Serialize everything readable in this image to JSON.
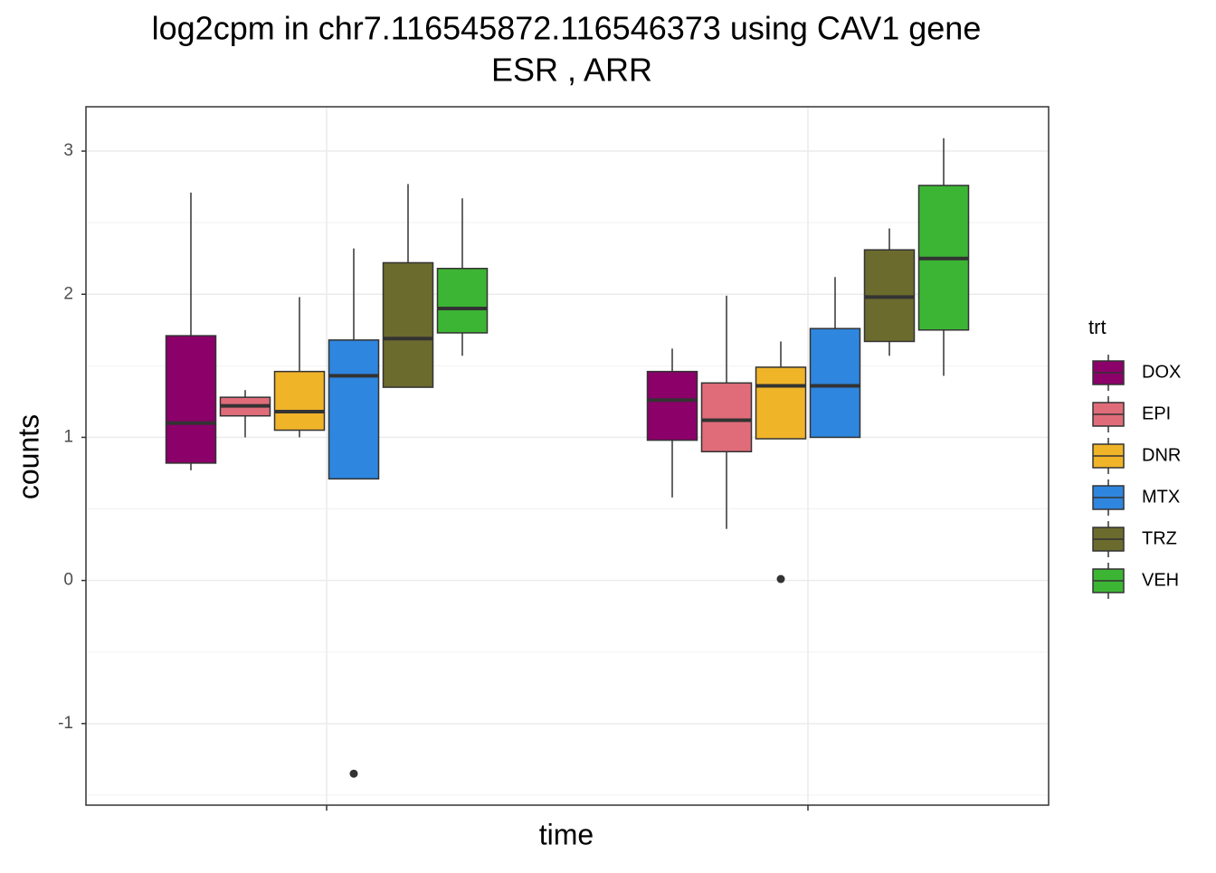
{
  "chart_data": {
    "type": "boxplot",
    "title_lines": [
      "log2cpm in  chr7.116545872.116546373  using  CAV1  gene",
      "ESR ,  ARR"
    ],
    "x_label": "time",
    "y_label": "counts",
    "legend_title": "trt",
    "legend": "right",
    "grid": true,
    "categories": [
      null,
      null
    ],
    "ylim": [
      -1.57,
      3.31
    ],
    "yticks": [
      -1,
      0,
      1,
      2,
      3
    ],
    "series": [
      {
        "name": "DOX",
        "color": "#8b0069",
        "min": [
          0.77,
          0.58
        ],
        "q1": [
          0.82,
          0.98
        ],
        "median": [
          1.1,
          1.26
        ],
        "q3": [
          1.71,
          1.46
        ],
        "max": [
          2.71,
          1.62
        ],
        "outliers": [
          [],
          []
        ]
      },
      {
        "name": "EPI",
        "color": "#e06c7a",
        "min": [
          1.0,
          0.36
        ],
        "q1": [
          1.15,
          0.9
        ],
        "median": [
          1.22,
          1.12
        ],
        "q3": [
          1.28,
          1.38
        ],
        "max": [
          1.33,
          1.99
        ],
        "outliers": [
          [],
          []
        ]
      },
      {
        "name": "DNR",
        "color": "#f0b429",
        "min": [
          1.0,
          0.99
        ],
        "q1": [
          1.05,
          0.99
        ],
        "median": [
          1.18,
          1.36
        ],
        "q3": [
          1.46,
          1.49
        ],
        "max": [
          1.98,
          1.67
        ],
        "outliers": [
          [],
          [
            0.01
          ]
        ]
      },
      {
        "name": "MTX",
        "color": "#2e86de",
        "min": [
          0.71,
          1.0
        ],
        "q1": [
          0.71,
          1.0
        ],
        "median": [
          1.43,
          1.36
        ],
        "q3": [
          1.68,
          1.76
        ],
        "max": [
          2.32,
          2.12
        ],
        "outliers": [
          [
            -1.35
          ],
          []
        ]
      },
      {
        "name": "TRZ",
        "color": "#6b6b2e",
        "min": [
          1.35,
          1.57
        ],
        "q1": [
          1.35,
          1.67
        ],
        "median": [
          1.69,
          1.98
        ],
        "q3": [
          2.22,
          2.31
        ],
        "max": [
          2.77,
          2.46
        ],
        "outliers": [
          [],
          []
        ]
      },
      {
        "name": "VEH",
        "color": "#3db534",
        "min": [
          1.57,
          1.43
        ],
        "q1": [
          1.73,
          1.75
        ],
        "median": [
          1.9,
          2.25
        ],
        "q3": [
          2.18,
          2.76
        ],
        "max": [
          2.67,
          3.09
        ],
        "outliers": [
          [],
          []
        ]
      }
    ]
  }
}
